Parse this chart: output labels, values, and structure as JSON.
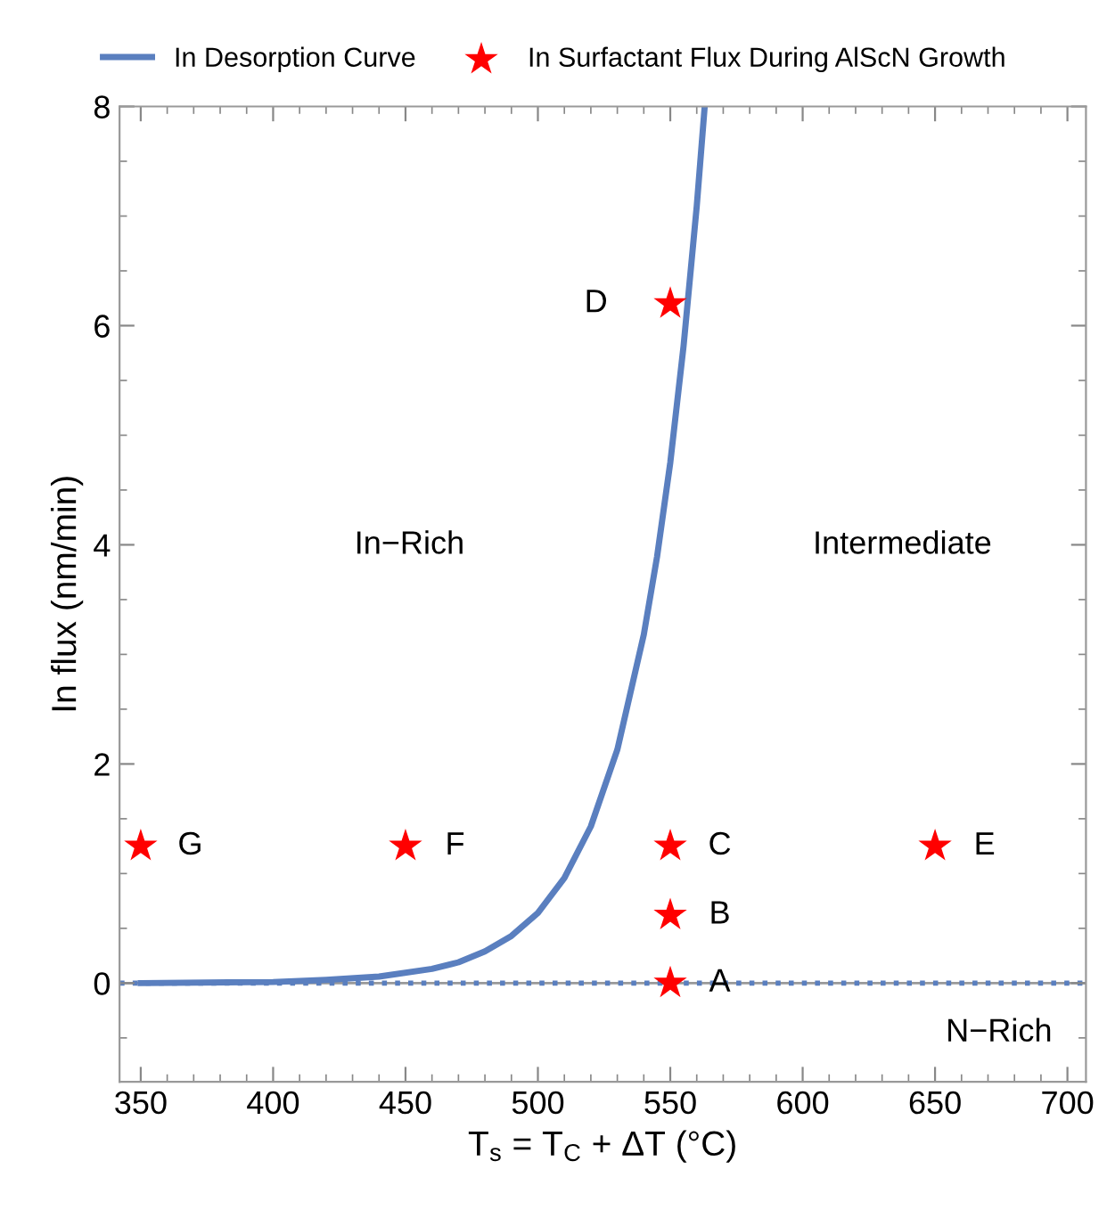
{
  "chart_data": {
    "type": "line",
    "xlabel": "T$_{s}$ = T$_{C}$ + ΔT (°C)",
    "ylabel": "In flux (nm/min)",
    "series": [
      {
        "name": "In Desorption Curve",
        "color": "#5a7fbf",
        "marker": "none",
        "line_style": "solid",
        "x": [
          350,
          400,
          420,
          440,
          460,
          470,
          480,
          490,
          500,
          510,
          520,
          530,
          540,
          545,
          550,
          555,
          560,
          563
        ],
        "values": [
          0.0,
          0.01,
          0.03,
          0.06,
          0.13,
          0.19,
          0.29,
          0.43,
          0.64,
          0.96,
          1.43,
          2.13,
          3.18,
          3.89,
          4.75,
          5.81,
          7.09,
          8.0
        ]
      },
      {
        "name": "In Surfactant Flux During AlScN Growth",
        "type": "scatter",
        "color": "#ff0000",
        "marker": "star",
        "x": [
          550,
          550,
          550,
          550,
          650,
          450,
          350
        ],
        "values": [
          0,
          0.62,
          1.25,
          6.2,
          1.25,
          1.25,
          1.25
        ]
      }
    ],
    "annotations": [
      {
        "text": "A",
        "x": 550,
        "y": 0
      },
      {
        "text": "B",
        "x": 550,
        "y": 0.62
      },
      {
        "text": "C",
        "x": 550,
        "y": 1.25
      },
      {
        "text": "D",
        "x": 550,
        "y": 6.2
      },
      {
        "text": "E",
        "x": 650,
        "y": 1.25
      },
      {
        "text": "F",
        "x": 450,
        "y": 1.25
      },
      {
        "text": "G",
        "x": 350,
        "y": 1.25
      },
      "In−Rich",
      "Intermediate",
      "N−Rich"
    ],
    "ref_lines": [
      {
        "axis": "y",
        "value": 0,
        "color": "#5a7fbf",
        "line_style": "dotted"
      }
    ],
    "xlim": [
      342,
      707
    ],
    "ylim": [
      -0.9,
      8
    ],
    "xticks": [
      350,
      400,
      450,
      500,
      550,
      600,
      650,
      700
    ],
    "yticks": [
      0,
      2,
      4,
      6,
      8
    ],
    "grid": false,
    "legend": "top"
  }
}
